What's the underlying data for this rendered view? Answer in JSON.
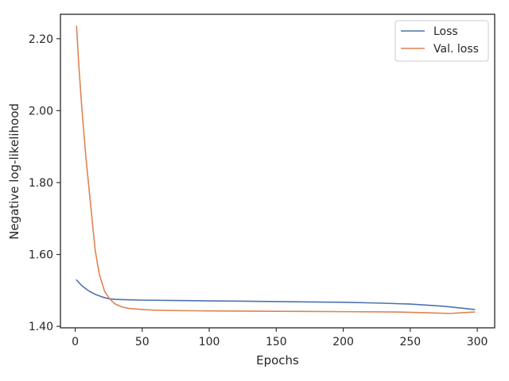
{
  "chart_data": {
    "type": "line",
    "xlabel": "Epochs",
    "ylabel": "Negative log-likelihood",
    "xlim": [
      -11,
      313
    ],
    "ylim": [
      1.396,
      2.268
    ],
    "xticks": [
      0,
      50,
      100,
      150,
      200,
      250,
      300
    ],
    "yticks": [
      1.4,
      1.6,
      1.8,
      2.0,
      2.2
    ],
    "ytick_labels": [
      "1.40",
      "1.60",
      "1.80",
      "2.00",
      "2.20"
    ],
    "grid": false,
    "legend": "top-right",
    "series": [
      {
        "name": "Loss",
        "color": "#4c72b0",
        "x": [
          1,
          5,
          10,
          15,
          20,
          25,
          30,
          40,
          50,
          75,
          100,
          125,
          150,
          175,
          200,
          225,
          250,
          275,
          298
        ],
        "y": [
          1.529,
          1.513,
          1.499,
          1.489,
          1.482,
          1.477,
          1.475,
          1.474,
          1.473,
          1.472,
          1.471,
          1.47,
          1.469,
          1.468,
          1.467,
          1.465,
          1.462,
          1.456,
          1.447
        ]
      },
      {
        "name": "Val. loss",
        "color": "#dd8452",
        "x": [
          1,
          3,
          5,
          8,
          12,
          15,
          18,
          22,
          26,
          30,
          35,
          40,
          50,
          60,
          75,
          100,
          150,
          200,
          240,
          260,
          280,
          298
        ],
        "y": [
          2.235,
          2.11,
          2.005,
          1.87,
          1.72,
          1.61,
          1.545,
          1.497,
          1.475,
          1.462,
          1.454,
          1.45,
          1.447,
          1.445,
          1.444,
          1.443,
          1.442,
          1.441,
          1.44,
          1.438,
          1.436,
          1.44
        ]
      }
    ]
  }
}
